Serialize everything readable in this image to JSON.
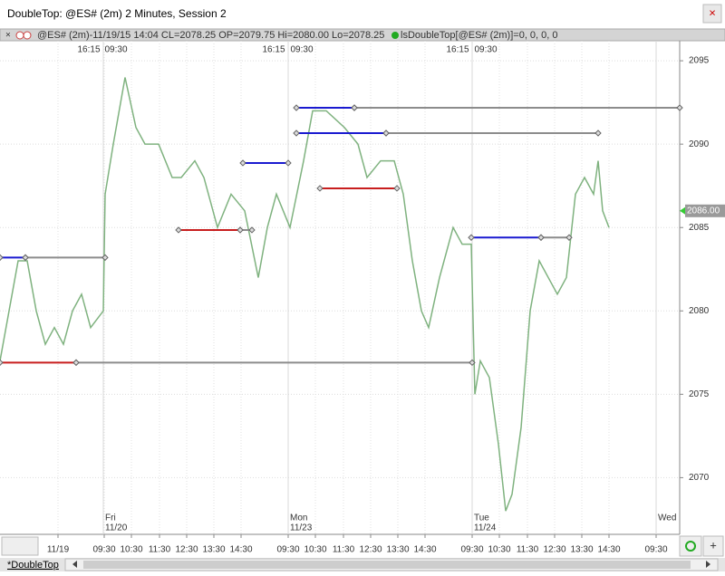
{
  "window": {
    "title": "DoubleTop: @ES# (2m) 2 Minutes, Session 2",
    "close": "×"
  },
  "info_bar": {
    "symbol": "@ES# (2m)-11/19/15 14:04 CL=2078.25 OP=2079.75 Hi=2080.00 Lo=2078.25",
    "study": "lsDoubleTop[@ES# (2m)]=0, 0, 0, 0"
  },
  "tab": "*DoubleTop",
  "add_button": "+",
  "chart_data": {
    "type": "line",
    "x": [
      0,
      10,
      20,
      30,
      40,
      50,
      60,
      70,
      80,
      90,
      100,
      114,
      116,
      125,
      138,
      150,
      160,
      175,
      190,
      200,
      215,
      225,
      240,
      255,
      270,
      285,
      295,
      305,
      320,
      335,
      345,
      360,
      380,
      395,
      405,
      420,
      435,
      445,
      455,
      465,
      473,
      485,
      500,
      510,
      520,
      524,
      530,
      540,
      550,
      558,
      565,
      575,
      585,
      595,
      605,
      615,
      625,
      635,
      645,
      655,
      660,
      665,
      672
    ],
    "values": [
      2077,
      2080,
      2083,
      2083,
      2080,
      2078,
      2079,
      2078,
      2080,
      2081,
      2079,
      2080,
      2087,
      2090,
      2094,
      2091,
      2090,
      2090,
      2088,
      2088,
      2089,
      2088,
      2085,
      2087,
      2086,
      2082,
      2085,
      2087,
      2085,
      2089,
      2092,
      2092,
      2091,
      2090,
      2088,
      2089,
      2089,
      2087,
      2083,
      2080,
      2079,
      2082,
      2085,
      2084,
      2084,
      2075,
      2077,
      2076,
      2072,
      2068,
      2069,
      2073,
      2080,
      2083,
      2082,
      2081,
      2082,
      2087,
      2088,
      2087,
      2089,
      2086,
      2085
    ],
    "color": "#7fb27f",
    "xlim": [
      0,
      750
    ],
    "ylim": [
      2066.6,
      2096.2
    ],
    "yticks": [
      2070,
      2075,
      2080,
      2085,
      2090,
      2095
    ],
    "grid": true,
    "xticks": [
      {
        "value": 64,
        "label": "11/19"
      },
      {
        "value": 115,
        "label": "09:30"
      },
      {
        "value": 145,
        "label": "10:30"
      },
      {
        "value": 176,
        "label": "11:30"
      },
      {
        "value": 206,
        "label": "12:30"
      },
      {
        "value": 236,
        "label": "13:30"
      },
      {
        "value": 266,
        "label": "14:30"
      },
      {
        "value": 318,
        "label": "09:30"
      },
      {
        "value": 348,
        "label": "10:30"
      },
      {
        "value": 379,
        "label": "11:30"
      },
      {
        "value": 409,
        "label": "12:30"
      },
      {
        "value": 439,
        "label": "13:30"
      },
      {
        "value": 469,
        "label": "14:30"
      },
      {
        "value": 521,
        "label": "09:30"
      },
      {
        "value": 551,
        "label": "10:30"
      },
      {
        "value": 582,
        "label": "11:30"
      },
      {
        "value": 612,
        "label": "12:30"
      },
      {
        "value": 642,
        "label": "13:30"
      },
      {
        "value": 672,
        "label": "14:30"
      },
      {
        "value": 724,
        "label": "09:30"
      }
    ],
    "session_ticks": [
      {
        "value": 98,
        "label": "16:15"
      },
      {
        "value": 128,
        "label": "09:30"
      },
      {
        "value": 302,
        "label": "16:15"
      },
      {
        "value": 333,
        "label": "09:30"
      },
      {
        "value": 505,
        "label": "16:15"
      },
      {
        "value": 536,
        "label": "09:30"
      }
    ],
    "day_labels": [
      {
        "value": 116,
        "day": "Fri",
        "date": "11/20"
      },
      {
        "value": 320,
        "day": "Mon",
        "date": "11/23"
      },
      {
        "value": 523,
        "day": "Tue",
        "date": "11/24"
      },
      {
        "value": 726,
        "day": "Wed"
      }
    ],
    "levels": [
      {
        "x": [
          0,
          28
        ],
        "price": 2083.2,
        "color": "#1a1ad0"
      },
      {
        "x": [
          28,
          116
        ],
        "price": 2083.2,
        "color": "#8c8c8c"
      },
      {
        "x": [
          0,
          84
        ],
        "price": 2076.9,
        "color": "#c81e1e"
      },
      {
        "x": [
          84,
          521
        ],
        "price": 2076.9,
        "color": "#8c8c8c"
      },
      {
        "x": [
          197,
          265
        ],
        "price": 2084.85,
        "color": "#c81e1e"
      },
      {
        "x": [
          265,
          278
        ],
        "price": 2084.85,
        "color": "#8c8c8c"
      },
      {
        "x": [
          268,
          318
        ],
        "price": 2088.87,
        "color": "#1a1ad0"
      },
      {
        "x": [
          327,
          391
        ],
        "price": 2092.18,
        "color": "#1a1ad0"
      },
      {
        "x": [
          391,
          750
        ],
        "price": 2092.18,
        "color": "#8c8c8c"
      },
      {
        "x": [
          327,
          426
        ],
        "price": 2090.66,
        "color": "#1a1ad0"
      },
      {
        "x": [
          426,
          660
        ],
        "price": 2090.66,
        "color": "#8c8c8c"
      },
      {
        "x": [
          353,
          438
        ],
        "price": 2087.35,
        "color": "#c81e1e"
      },
      {
        "x": [
          520,
          597
        ],
        "price": 2084.4,
        "color": "#1a1ad0"
      },
      {
        "x": [
          597,
          628
        ],
        "price": 2084.4,
        "color": "#8c8c8c"
      }
    ],
    "last_price": {
      "value": 2086,
      "label": "2086.00"
    }
  }
}
